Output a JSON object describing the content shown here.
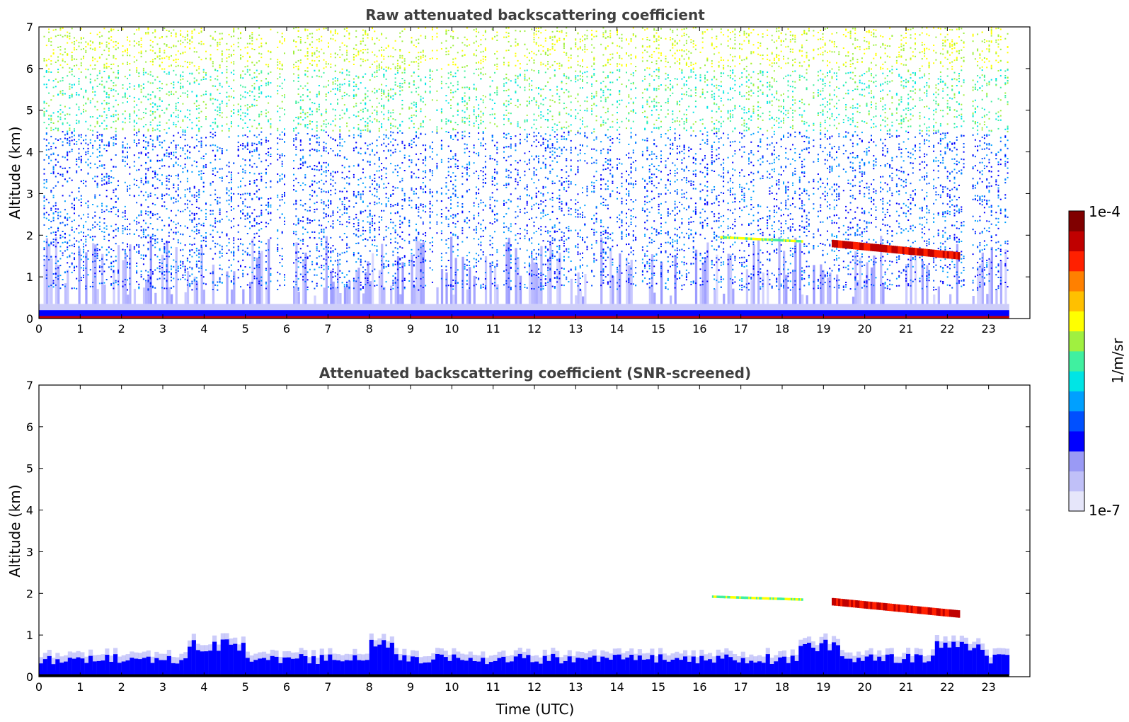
{
  "colormap": [
    "#e6e6fa",
    "#c0c0f8",
    "#9a9af5",
    "#0000ff",
    "#0050ff",
    "#00a0ff",
    "#00e5e5",
    "#40f0a0",
    "#a0f040",
    "#ffff00",
    "#ffc000",
    "#ff8000",
    "#ff2000",
    "#c00000",
    "#800000"
  ],
  "chart_data": [
    {
      "type": "heatmap",
      "title": "Raw attenuated backscattering coefficient",
      "xlabel": "",
      "ylabel": "Altitude (km)",
      "xlim": [
        0,
        24
      ],
      "ylim": [
        0,
        7
      ],
      "xticks": [
        "0",
        "1",
        "2",
        "3",
        "4",
        "5",
        "6",
        "7",
        "8",
        "9",
        "10",
        "11",
        "12",
        "13",
        "14",
        "15",
        "16",
        "17",
        "18",
        "19",
        "20",
        "21",
        "22",
        "23"
      ],
      "yticks": [
        "0",
        "1",
        "2",
        "3",
        "4",
        "5",
        "6",
        "7"
      ],
      "data_end_hour": 23.5,
      "features": {
        "noise_above_km": 3.5,
        "boundary_layer_top_km": 0.35,
        "cloud_layer": [
          {
            "x": [
              16.5,
              18.5
            ],
            "y": [
              1.95,
              1.85
            ],
            "intensity": "medium"
          },
          {
            "x": [
              19.2,
              22.3
            ],
            "y": [
              1.8,
              1.5
            ],
            "intensity": "high"
          }
        ]
      }
    },
    {
      "type": "heatmap",
      "title": "Attenuated backscattering coefficient (SNR-screened)",
      "xlabel": "Time (UTC)",
      "ylabel": "Altitude (km)",
      "xlim": [
        0,
        24
      ],
      "ylim": [
        0,
        7
      ],
      "xticks": [
        "0",
        "1",
        "2",
        "3",
        "4",
        "5",
        "6",
        "7",
        "8",
        "9",
        "10",
        "11",
        "12",
        "13",
        "14",
        "15",
        "16",
        "17",
        "18",
        "19",
        "20",
        "21",
        "22",
        "23"
      ],
      "yticks": [
        "0",
        "1",
        "2",
        "3",
        "4",
        "5",
        "6",
        "7"
      ],
      "data_end_hour": 23.5,
      "features": {
        "boundary_layer_top_km": 0.9,
        "cloud_layer": [
          {
            "x": [
              16.3,
              18.5
            ],
            "y": [
              1.92,
              1.85
            ],
            "intensity": "medium"
          },
          {
            "x": [
              19.2,
              22.3
            ],
            "y": [
              1.8,
              1.5
            ],
            "intensity": "high"
          }
        ]
      }
    }
  ],
  "colorbar": {
    "max_label": "1e-4",
    "min_label": "1e-7",
    "unit_label": "1/m/sr"
  }
}
